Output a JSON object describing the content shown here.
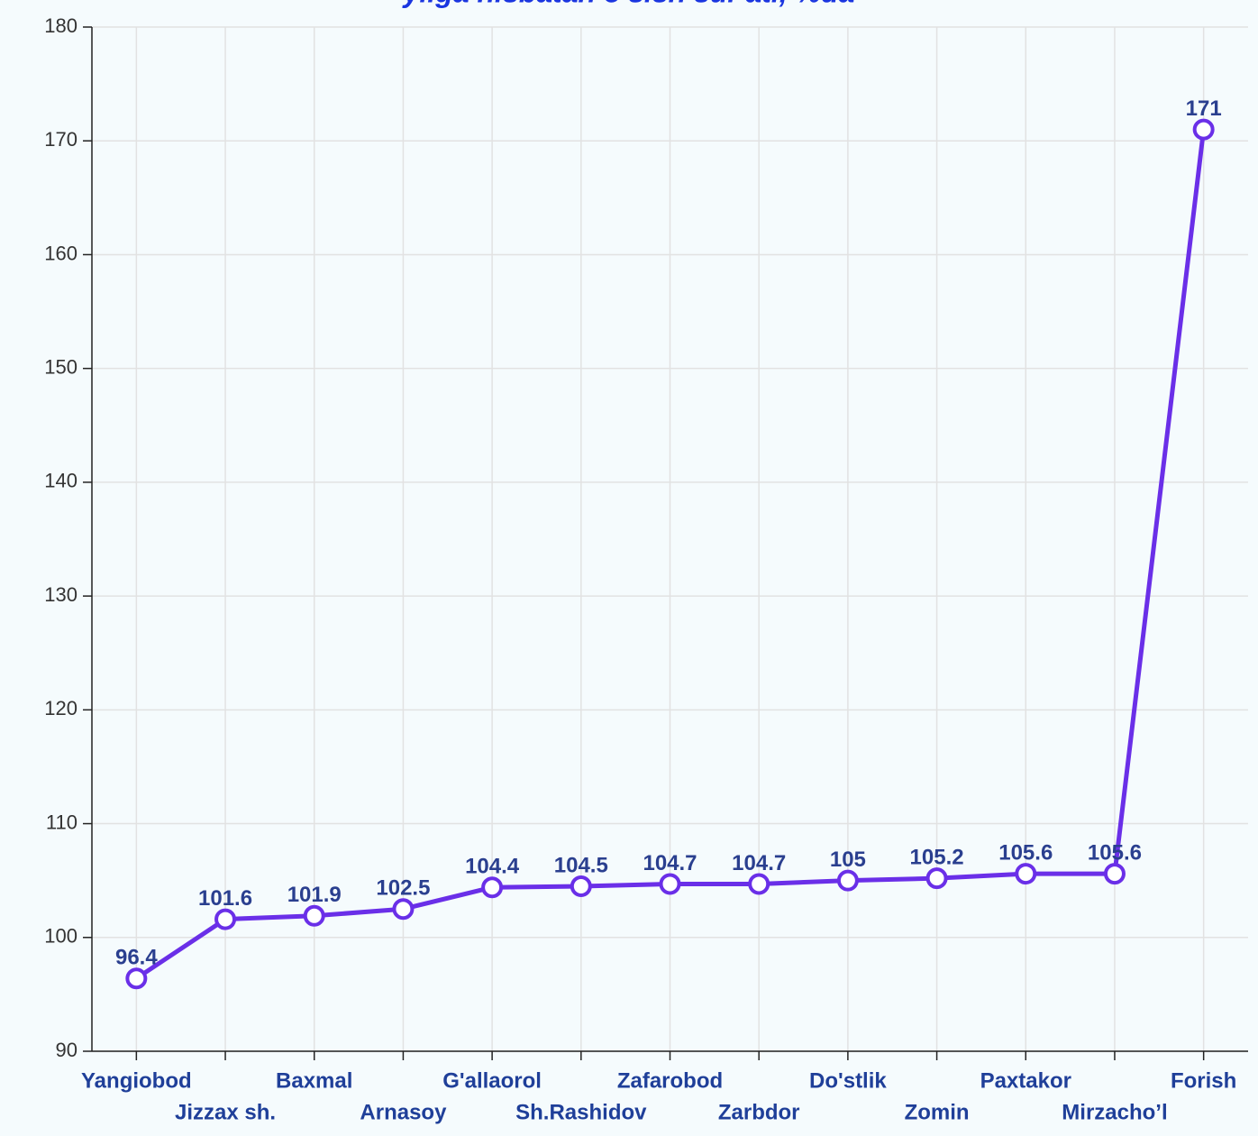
{
  "chart_data": {
    "type": "line",
    "title": "yilga nisbatan o'sish sur'ati, %da",
    "categories": [
      "Yangiobod",
      "Jizzax sh.",
      "Baxmal",
      "Arnasoy",
      "G'allaorol",
      "Sh.Rashidov",
      "Zafarobod",
      "Zarbdor",
      "Do'stlik",
      "Zomin",
      "Paxtakor",
      "Mirzacho’l",
      "Forish"
    ],
    "series": [
      {
        "name": "o'sish sur'ati",
        "color": "#6a2fe8",
        "values": [
          96.4,
          101.6,
          101.9,
          102.5,
          104.4,
          104.5,
          104.7,
          104.7,
          105,
          105.2,
          105.6,
          105.6,
          171
        ]
      }
    ],
    "ylim": [
      90,
      180
    ],
    "yticks": [
      90,
      100,
      110,
      120,
      130,
      140,
      150,
      160,
      170,
      180
    ],
    "grid": true
  }
}
